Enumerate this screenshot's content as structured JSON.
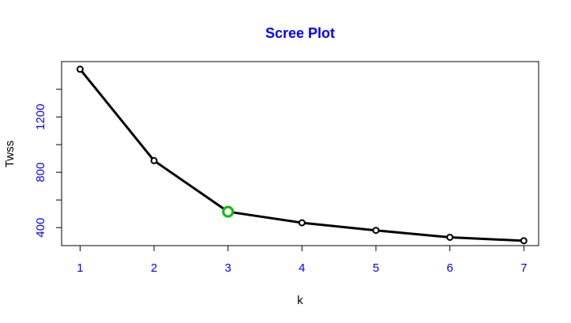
{
  "chart_data": {
    "type": "line",
    "title": "Scree Plot",
    "xlabel": "k",
    "ylabel": "Twss",
    "x": [
      1,
      2,
      3,
      4,
      5,
      6,
      7
    ],
    "y": [
      1545,
      884,
      515,
      435,
      380,
      330,
      305
    ],
    "highlight": {
      "x": 3,
      "y": 515
    },
    "xlim": [
      0.75,
      7.2
    ],
    "ylim": [
      270,
      1600
    ],
    "xticks": [
      1,
      2,
      3,
      4,
      5,
      6,
      7
    ],
    "yticks": [
      400,
      800,
      1200
    ],
    "yticks_minor": [
      600,
      1000,
      1400
    ],
    "grid": false,
    "colors": {
      "title": "#0000ff",
      "tick_labels": "#0000ff",
      "line": "#000000",
      "highlight": "#00c000"
    }
  }
}
